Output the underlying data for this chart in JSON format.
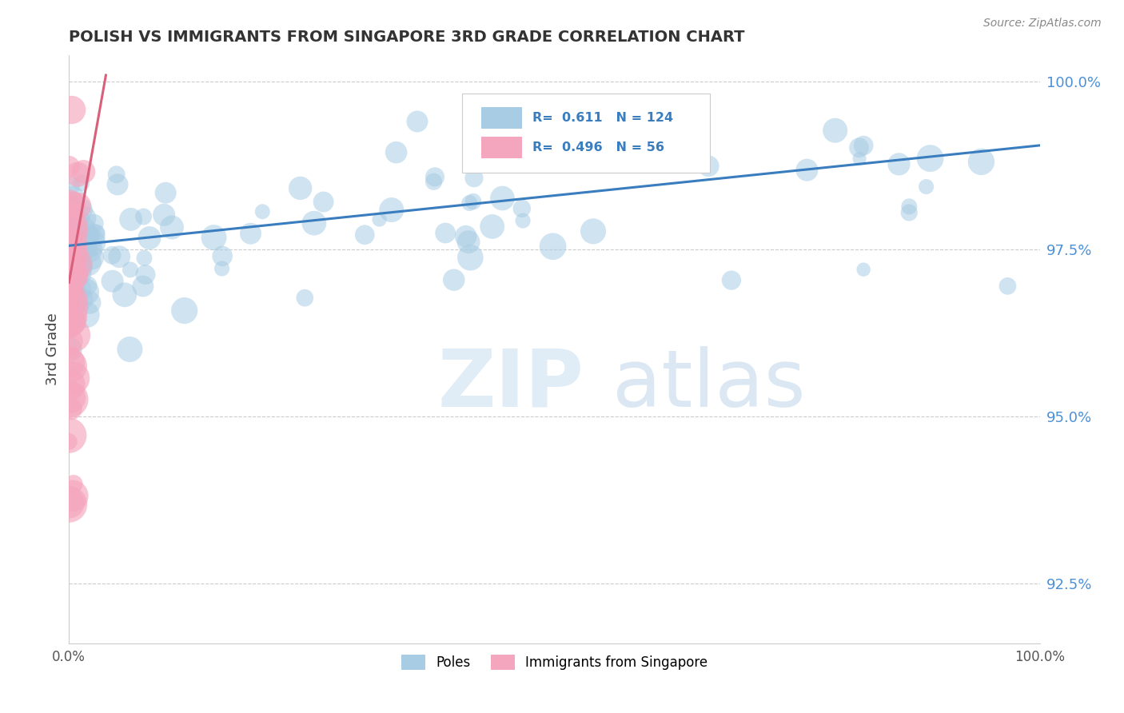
{
  "title": "POLISH VS IMMIGRANTS FROM SINGAPORE 3RD GRADE CORRELATION CHART",
  "source_text": "Source: ZipAtlas.com",
  "xlabel": "",
  "ylabel": "3rd Grade",
  "xlim": [
    0.0,
    1.0
  ],
  "ylim": [
    0.916,
    1.004
  ],
  "yticks": [
    0.925,
    0.95,
    0.975,
    1.0
  ],
  "ytick_labels": [
    "92.5%",
    "95.0%",
    "97.5%",
    "100.0%"
  ],
  "xticks": [
    0.0,
    0.25,
    0.5,
    0.75,
    1.0
  ],
  "xtick_labels": [
    "0.0%",
    "",
    "",
    "",
    "100.0%"
  ],
  "blue_R": 0.611,
  "blue_N": 124,
  "pink_R": 0.496,
  "pink_N": 56,
  "blue_color": "#a8cce4",
  "pink_color": "#f4a6be",
  "blue_line_color": "#3a7dbf",
  "pink_line_color": "#d95f7a",
  "ytick_color": "#4a90d9",
  "watermark_zip_color": "#c8dff0",
  "watermark_atlas_color": "#b0cce0",
  "legend_label_blue": "Poles",
  "legend_label_pink": "Immigrants from Singapore",
  "background_color": "#ffffff",
  "grid_color": "#cccccc",
  "blue_trend_x": [
    0.0,
    1.0
  ],
  "blue_trend_y": [
    0.9755,
    0.9905
  ],
  "pink_trend_x": [
    0.0,
    0.038
  ],
  "pink_trend_y": [
    0.97,
    1.001
  ]
}
